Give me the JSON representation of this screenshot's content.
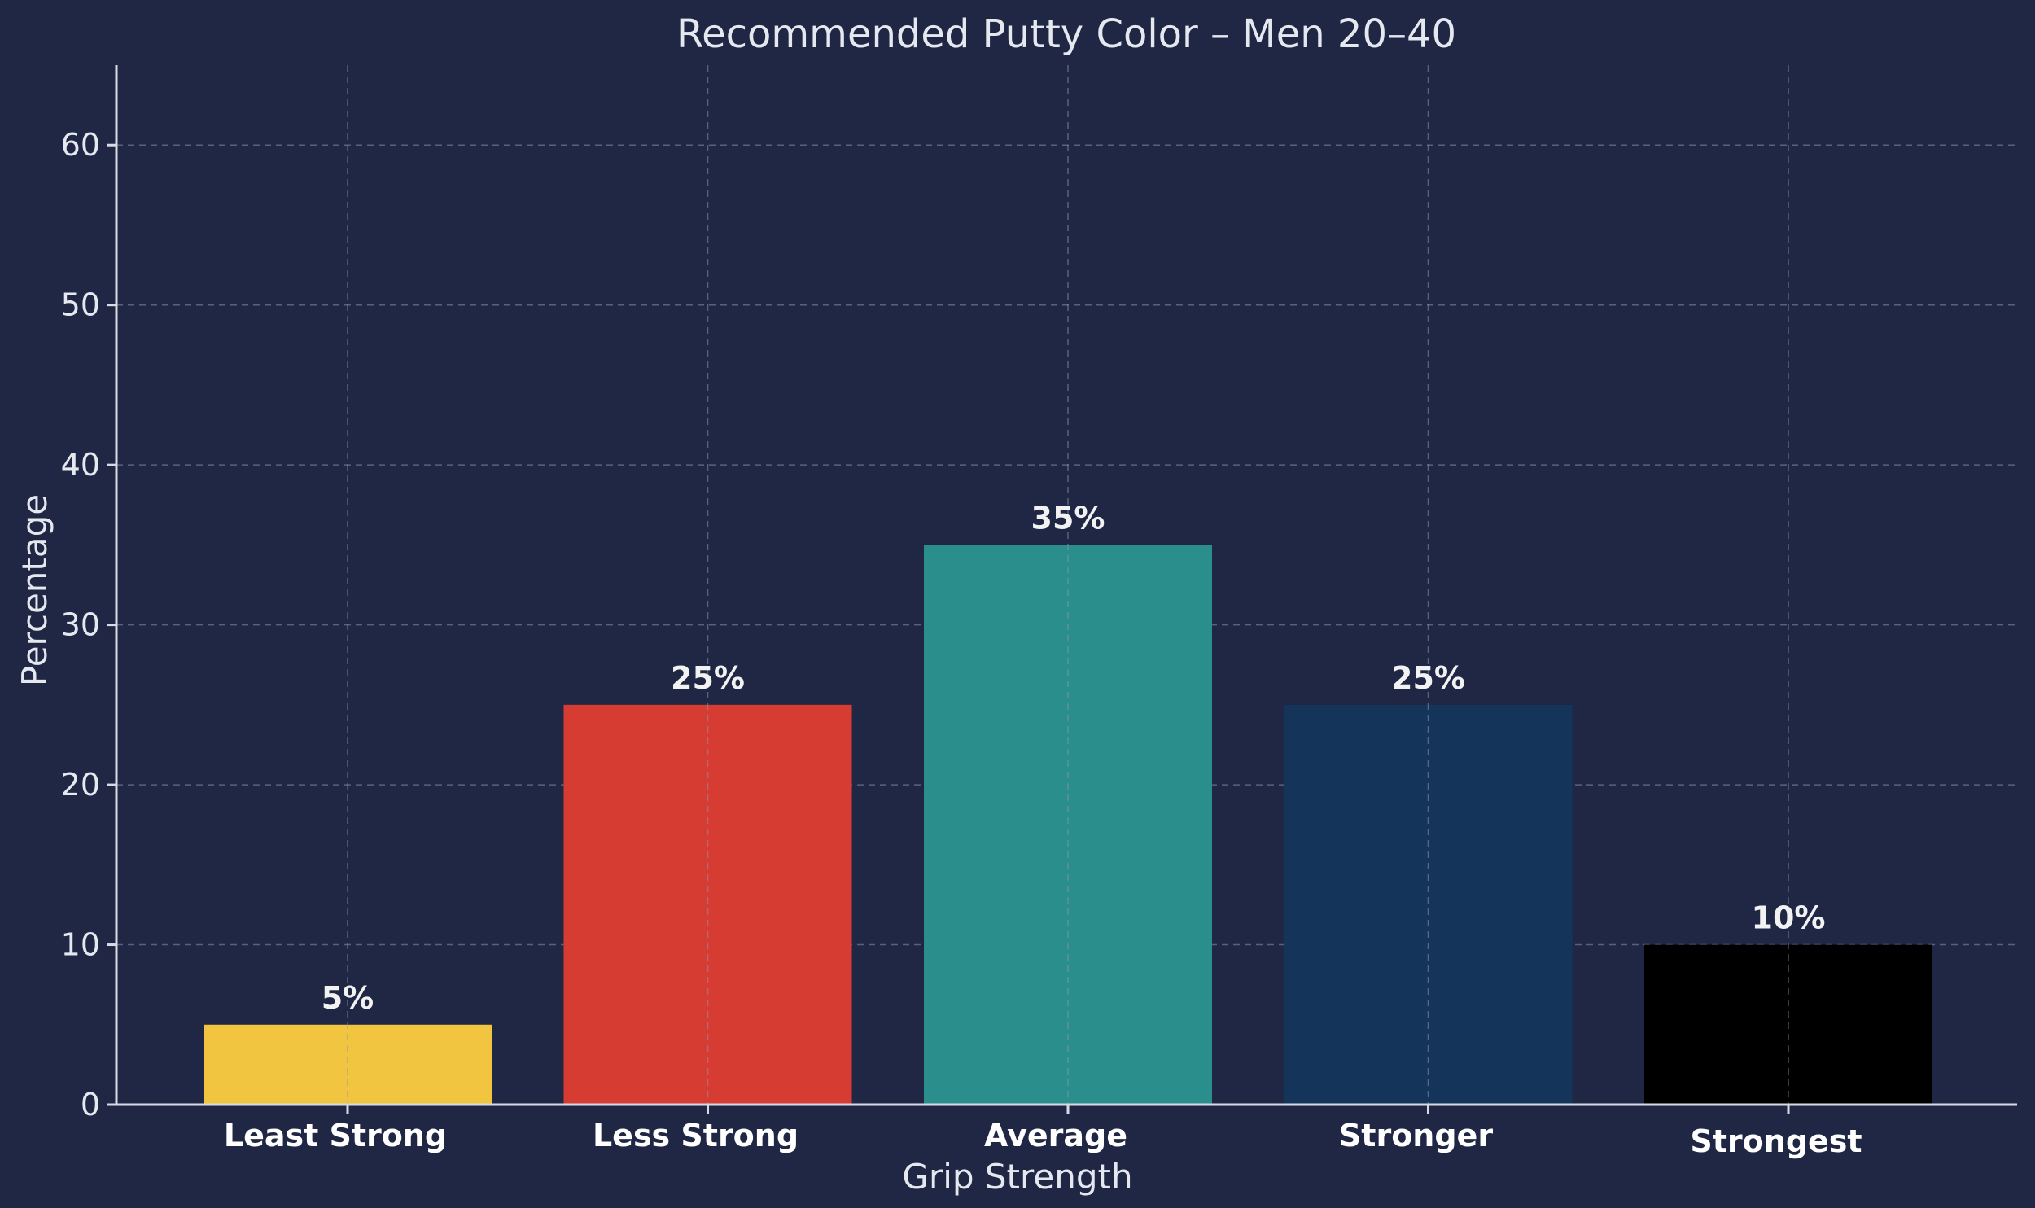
{
  "chart_data": {
    "type": "bar",
    "title": "Recommended Putty Color – Men 20–40",
    "xlabel": "Grip Strength",
    "ylabel": "Percentage",
    "categories": [
      "Least Strong",
      "Less Strong",
      "Average",
      "Stronger",
      "Strongest"
    ],
    "values": [
      5,
      25,
      35,
      25,
      10
    ],
    "data_labels": [
      "5%",
      "25%",
      "35%",
      "25%",
      "10%"
    ],
    "colors": [
      "#f1c540",
      "#d63c32",
      "#2a8f8c",
      "#14345a",
      "#000000"
    ],
    "ylim": [
      0,
      65
    ],
    "yticks": [
      0,
      10,
      20,
      30,
      40,
      50,
      60
    ],
    "grid": true,
    "background": "#1f2744"
  }
}
